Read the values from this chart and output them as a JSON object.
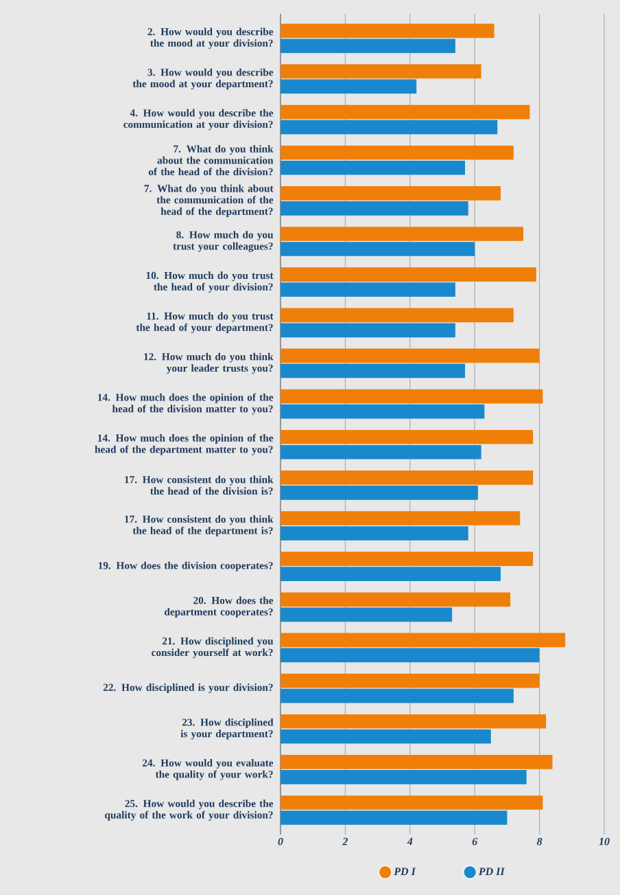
{
  "chart_data": {
    "type": "bar",
    "orientation": "horizontal",
    "categories": [
      "2. How would you describe the mood at your division?",
      "3. How would you describe the mood at your department?",
      "4. How would you describe the communication at your division?",
      "7. What do you think about the communication of the head of the division?",
      "7. What do you think about the communication of the head of the department?",
      "8. How much do you trust your colleagues?",
      "10. How much do you trust the head of your division?",
      "11. How much do you trust the head of your department?",
      "12. How much do you think your leader trusts you?",
      "14. How much does the opinion of the head of the division matter to you?",
      "14. How much does the opinion of the head of the department matter to you?",
      "17. How consistent do you think the head of the division is?",
      "17. How consistent do you think the head of the department is?",
      "19. How does the division cooperates?",
      "20. How does the department cooperates?",
      "21. How disciplined you consider yourself at work?",
      "22. How disciplined is your division?",
      "23. How disciplined is your department?",
      "24. How would you evaluate the quality of your work?",
      "25. How would you describe the quality of the work of your division?"
    ],
    "series": [
      {
        "name": "PD I",
        "color": "#f07f09",
        "values": [
          6.6,
          6.2,
          7.7,
          7.2,
          6.8,
          7.5,
          7.9,
          7.2,
          8.0,
          8.1,
          7.8,
          7.8,
          7.4,
          7.8,
          7.1,
          8.8,
          8.0,
          8.2,
          8.4,
          8.1
        ]
      },
      {
        "name": "PD II",
        "color": "#1a88cc",
        "values": [
          5.4,
          4.2,
          6.7,
          5.7,
          5.8,
          6.0,
          5.4,
          5.4,
          5.7,
          6.3,
          6.2,
          6.1,
          5.8,
          6.8,
          5.3,
          8.0,
          7.2,
          6.5,
          7.6,
          7.0
        ]
      }
    ],
    "xlim": [
      0,
      10
    ],
    "xticks": [
      0,
      2,
      4,
      6,
      8,
      10
    ],
    "grid": "x",
    "legend": "bottom"
  }
}
